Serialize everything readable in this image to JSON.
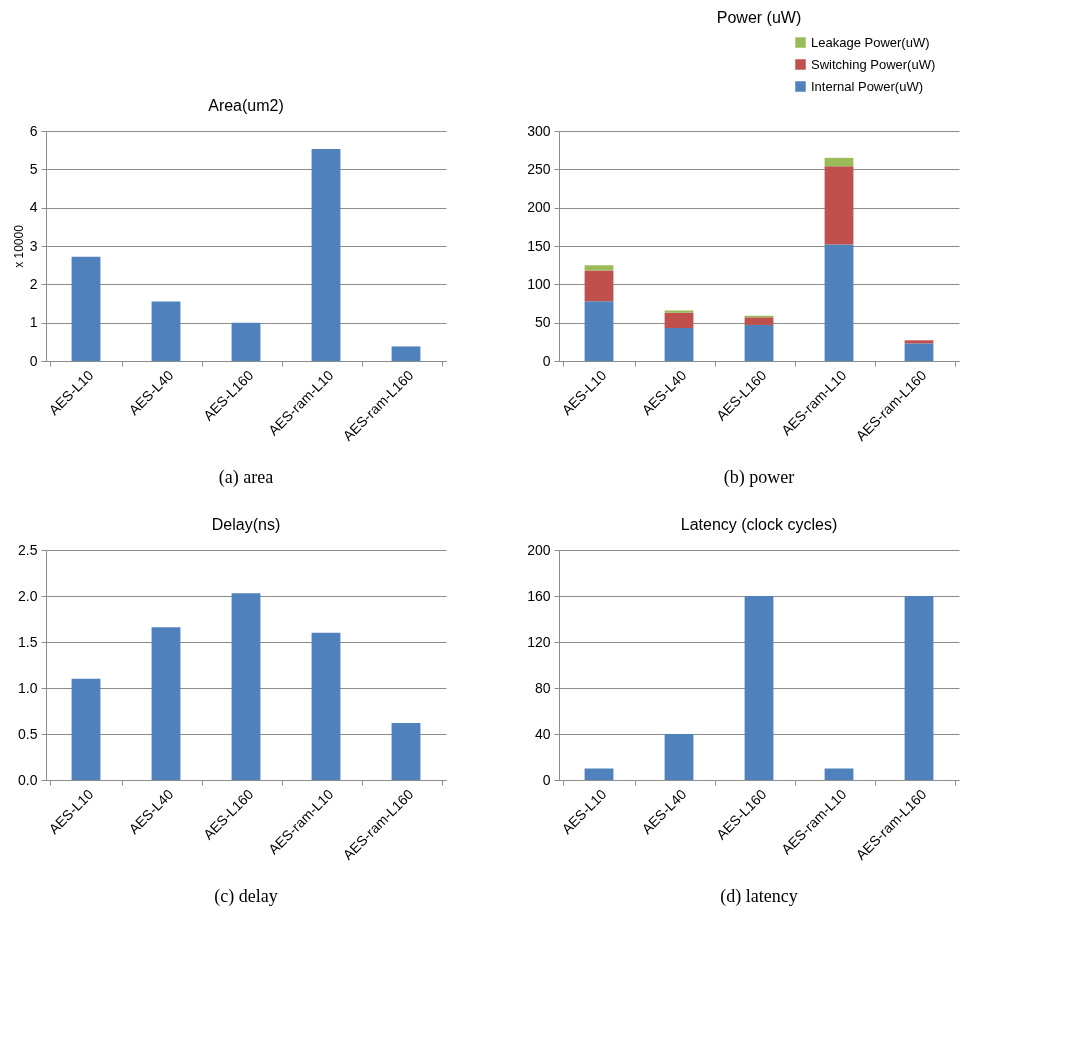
{
  "chart_data": [
    {
      "type": "bar",
      "title": "Area(um2)",
      "ylabel": "x 10000",
      "categories": [
        "AES-L10",
        "AES-L40",
        "AES-L160",
        "AES-ram-L10",
        "AES-ram-L160"
      ],
      "series": [
        {
          "color": "#4f81bd",
          "values": [
            2.72,
            1.55,
            1.0,
            5.53,
            0.38
          ]
        }
      ],
      "ylim": [
        0,
        6
      ],
      "yticks": [
        0,
        1,
        2,
        3,
        4,
        5,
        6
      ],
      "grid": "y",
      "annotations": [
        "(a) area"
      ]
    },
    {
      "type": "bar",
      "title": "Power (uW)",
      "categories": [
        "AES-L10",
        "AES-L40",
        "AES-L160",
        "AES-ram-L10",
        "AES-ram-L160"
      ],
      "stacked": true,
      "series": [
        {
          "name": "Internal Power(uW)",
          "color": "#4f81bd",
          "values": [
            78,
            43,
            47,
            152,
            23
          ]
        },
        {
          "name": "Switching Power(uW)",
          "color": "#c0504d",
          "values": [
            40,
            20,
            10,
            102,
            4
          ]
        },
        {
          "name": "Leakage Power(uW)",
          "color": "#9bbb59",
          "values": [
            7,
            3,
            2,
            11,
            null
          ]
        }
      ],
      "ylim": [
        0,
        300
      ],
      "yticks": [
        0,
        50,
        100,
        150,
        200,
        250,
        300
      ],
      "grid": "y",
      "legend": "top right",
      "annotations": [
        "(b) power"
      ]
    },
    {
      "type": "bar",
      "title": "Delay(ns)",
      "categories": [
        "AES-L10",
        "AES-L40",
        "AES-L160",
        "AES-ram-L10",
        "AES-ram-L160"
      ],
      "series": [
        {
          "color": "#4f81bd",
          "values": [
            1.1,
            1.66,
            2.03,
            1.6,
            0.62
          ]
        }
      ],
      "ylim": [
        0,
        2.5
      ],
      "yticks": [
        {
          "value": 0,
          "label": "0.0"
        },
        0.5,
        {
          "value": 1,
          "label": "1.0"
        },
        1.5,
        {
          "value": 2,
          "label": "2.0"
        },
        2.5
      ],
      "grid": "y",
      "annotations": [
        "(c) delay"
      ]
    },
    {
      "type": "bar",
      "title": "Latency (clock cycles)",
      "categories": [
        "AES-L10",
        "AES-L40",
        "AES-L160",
        "AES-ram-L10",
        "AES-ram-L160"
      ],
      "series": [
        {
          "color": "#4f81bd",
          "values": [
            10,
            40,
            160,
            10,
            160
          ]
        }
      ],
      "ylim": [
        0,
        200
      ],
      "yticks": [
        0,
        40,
        80,
        120,
        160,
        200
      ],
      "grid": "y",
      "annotations": [
        "(d) latency"
      ]
    }
  ]
}
